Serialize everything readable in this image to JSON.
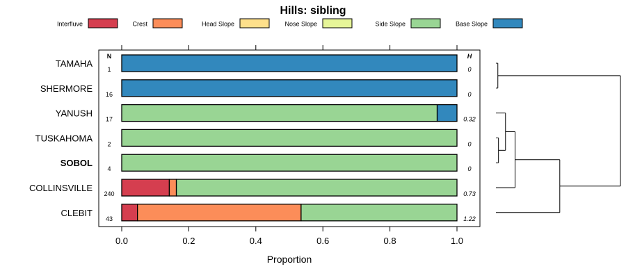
{
  "chart_data": {
    "type": "bar",
    "orientation": "horizontal",
    "stacked": true,
    "title": "Hills: sibling",
    "xlabel": "Proportion",
    "ylabel": "",
    "xlim": [
      0,
      1
    ],
    "x_ticks": [
      "0.0",
      "0.2",
      "0.4",
      "0.6",
      "0.8",
      "1.0"
    ],
    "x_tick_values": [
      0,
      0.2,
      0.4,
      0.6,
      0.8,
      1.0
    ],
    "n_header": "N",
    "h_header": "H",
    "legend_position": "top",
    "grid": false,
    "categories": [
      "TAMAHA",
      "SHERMORE",
      "YANUSH",
      "TUSKAHOMA",
      "SOBOL",
      "COLLINSVILLE",
      "CLEBIT"
    ],
    "highlight_category": "SOBOL",
    "n": [
      "1",
      "16",
      "17",
      "2",
      "4",
      "240",
      "43"
    ],
    "h": [
      "0",
      "0",
      "0.32",
      "0",
      "0",
      "0.73",
      "1.22"
    ],
    "series": [
      {
        "name": "Interfluve",
        "color": "#D53E4F",
        "values": [
          0,
          0,
          0,
          0,
          0,
          0.142,
          0.047
        ]
      },
      {
        "name": "Crest",
        "color": "#FC8D59",
        "values": [
          0,
          0,
          0,
          0,
          0,
          0.021,
          0.488
        ]
      },
      {
        "name": "Head Slope",
        "color": "#FEE08B",
        "values": [
          0,
          0,
          0,
          0,
          0,
          0,
          0
        ]
      },
      {
        "name": "Nose Slope",
        "color": "#E6F598",
        "values": [
          0,
          0,
          0,
          0,
          0,
          0,
          0
        ]
      },
      {
        "name": "Side Slope",
        "color": "#99D594",
        "values": [
          0,
          0,
          0.941,
          1,
          1,
          0.837,
          0.465
        ]
      },
      {
        "name": "Base Slope",
        "color": "#3288BD",
        "values": [
          1,
          1,
          0.059,
          0,
          0,
          0,
          0
        ]
      }
    ],
    "dendrogram": {
      "type": "hierarchical-clustering",
      "merges": [
        {
          "id": "m1",
          "children": [
            "TUSKAHOMA",
            "SOBOL"
          ],
          "height": 0.04
        },
        {
          "id": "m2",
          "children": [
            "YANUSH",
            "m1"
          ],
          "height": 0.15
        },
        {
          "id": "m3",
          "children": [
            "m2",
            "COLLINSVILLE"
          ],
          "height": 0.3
        },
        {
          "id": "m4",
          "children": [
            "TAMAHA",
            "SHERMORE"
          ],
          "height": 0.03
        },
        {
          "id": "m5",
          "children": [
            "m3",
            "CLEBIT"
          ],
          "height": 1.0
        },
        {
          "id": "m6",
          "children": [
            "m4",
            "m5"
          ],
          "height": 1.95
        }
      ]
    }
  }
}
